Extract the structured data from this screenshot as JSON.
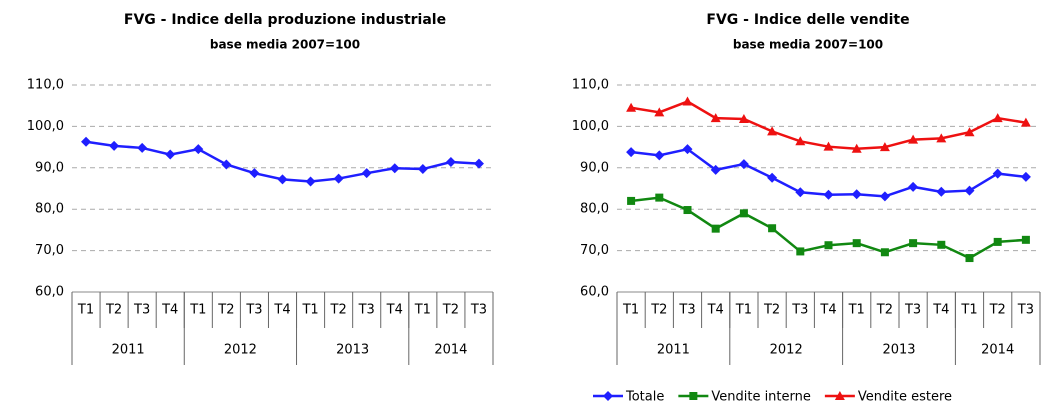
{
  "chart_data": [
    {
      "type": "line",
      "title": "FVG - Indice della produzione industriale",
      "subtitle": "base media 2007=100",
      "categories": [
        "T1",
        "T2",
        "T3",
        "T4",
        "T1",
        "T2",
        "T3",
        "T4",
        "T1",
        "T2",
        "T3",
        "T4",
        "T1",
        "T2",
        "T3"
      ],
      "year_groups": [
        {
          "label": "2011",
          "count": 4
        },
        {
          "label": "2012",
          "count": 4
        },
        {
          "label": "2013",
          "count": 4
        },
        {
          "label": "2014",
          "count": 3
        }
      ],
      "values": [
        96.3,
        95.3,
        94.8,
        93.2,
        94.5,
        90.8,
        88.7,
        87.2,
        86.7,
        87.4,
        88.7,
        89.9,
        89.7,
        91.4,
        91.0
      ],
      "color": "#1f1fff",
      "marker": "diamond",
      "ylim": [
        60,
        110
      ],
      "yticks": [
        {
          "value": 60,
          "label": "60,0"
        },
        {
          "value": 70,
          "label": "70,0"
        },
        {
          "value": 80,
          "label": "80,0"
        },
        {
          "value": 90,
          "label": "90,0"
        },
        {
          "value": 100,
          "label": "100,0"
        },
        {
          "value": 110,
          "label": "110,0"
        }
      ],
      "grid": true
    },
    {
      "type": "line",
      "title": "FVG - Indice delle vendite",
      "subtitle": "base media 2007=100",
      "categories": [
        "T1",
        "T2",
        "T3",
        "T4",
        "T1",
        "T2",
        "T3",
        "T4",
        "T1",
        "T2",
        "T3",
        "T4",
        "T1",
        "T2",
        "T3"
      ],
      "year_groups": [
        {
          "label": "2011",
          "count": 4
        },
        {
          "label": "2012",
          "count": 4
        },
        {
          "label": "2013",
          "count": 4
        },
        {
          "label": "2014",
          "count": 3
        }
      ],
      "series": [
        {
          "name": "Totale",
          "color": "#1f1fff",
          "marker": "diamond",
          "values": [
            93.8,
            93.0,
            94.5,
            89.5,
            90.9,
            87.6,
            84.1,
            83.5,
            83.6,
            83.1,
            85.4,
            84.2,
            84.5,
            88.6,
            87.8
          ]
        },
        {
          "name": "Vendite interne",
          "color": "#118811",
          "marker": "square",
          "values": [
            82.0,
            82.8,
            79.8,
            75.3,
            79.0,
            75.4,
            69.8,
            71.3,
            71.8,
            69.6,
            71.8,
            71.4,
            68.2,
            72.1,
            72.6
          ]
        },
        {
          "name": "Vendite estere",
          "color": "#ee1111",
          "marker": "triangle",
          "values": [
            104.5,
            103.4,
            106.0,
            102.0,
            101.8,
            98.8,
            96.4,
            95.1,
            94.6,
            95.0,
            96.8,
            97.1,
            98.6,
            102.0,
            100.9
          ]
        }
      ],
      "ylim": [
        60,
        110
      ],
      "yticks": [
        {
          "value": 60,
          "label": "60,0"
        },
        {
          "value": 70,
          "label": "70,0"
        },
        {
          "value": 80,
          "label": "80,0"
        },
        {
          "value": 90,
          "label": "90,0"
        },
        {
          "value": 100,
          "label": "100,0"
        },
        {
          "value": 110,
          "label": "110,0"
        }
      ],
      "grid": true,
      "legend": "bottom"
    }
  ]
}
